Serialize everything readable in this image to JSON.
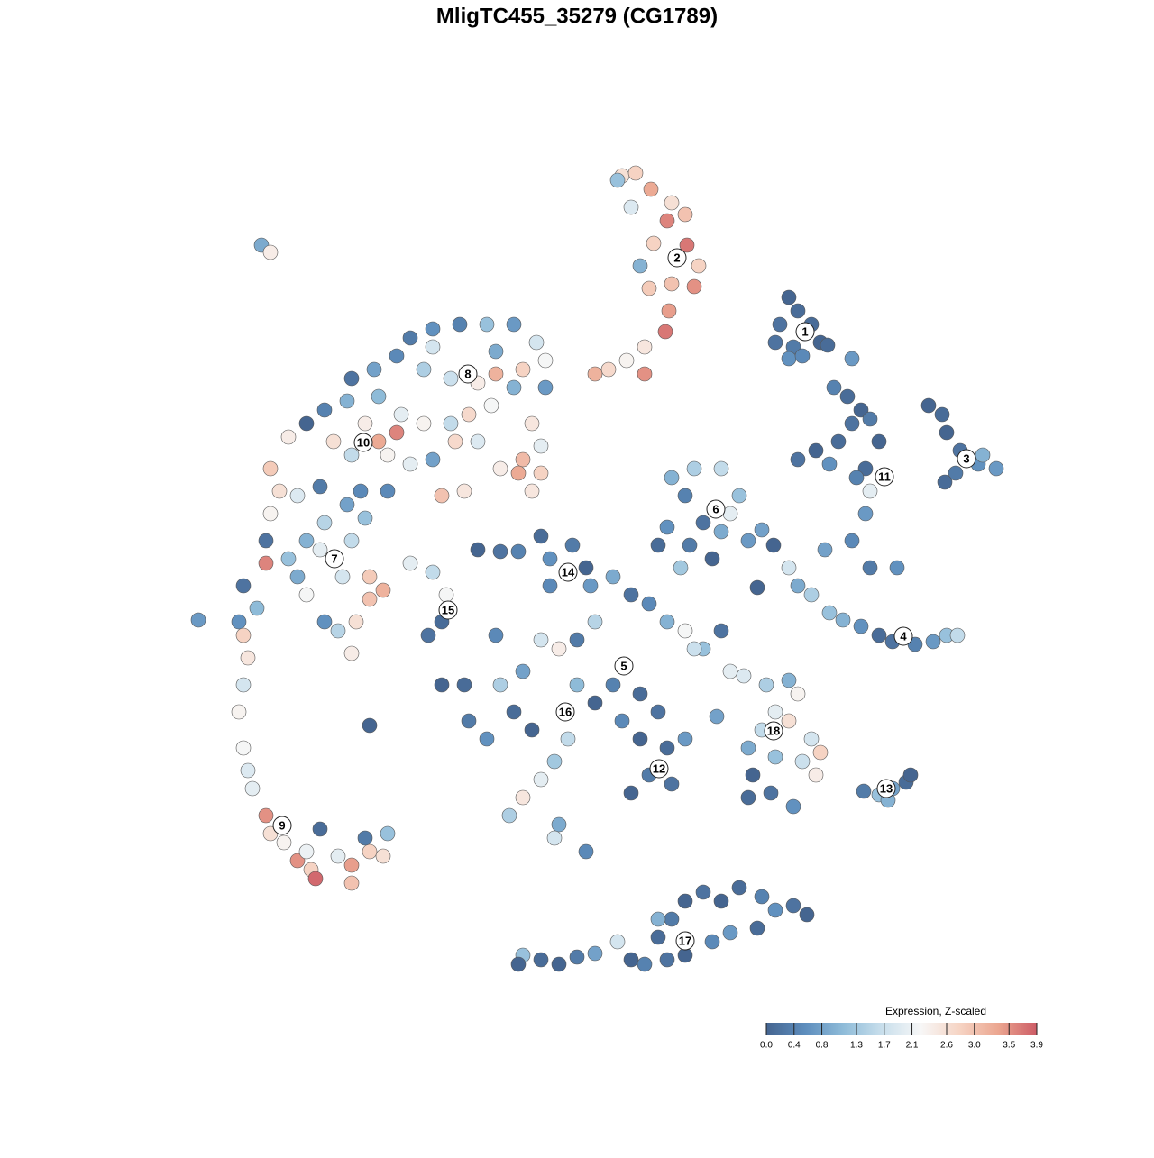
{
  "chart_data": {
    "type": "scatter",
    "title": "MligTC455_35279 (CG1789)",
    "xlim": [
      0,
      1280
    ],
    "ylim": [
      1280,
      0
    ],
    "x": [
      690,
      705,
      722,
      745,
      760,
      740,
      725,
      762,
      775,
      745,
      770,
      720,
      742,
      738,
      715,
      695,
      715,
      675,
      660,
      700,
      710,
      685,
      875,
      885,
      865,
      900,
      880,
      910,
      860,
      875,
      890,
      945,
      918,
      1030,
      1045,
      1050,
      1065,
      1085,
      1105,
      1060,
      1048,
      1090,
      925,
      940,
      955,
      945,
      965,
      930,
      905,
      885,
      920,
      960,
      975,
      950,
      965,
      960,
      945,
      915,
      965,
      995,
      858,
      875,
      885,
      900,
      920,
      935,
      955,
      975,
      990,
      1015,
      1035,
      1050,
      1062,
      840,
      745,
      770,
      800,
      820,
      760,
      780,
      800,
      830,
      740,
      730,
      765,
      790,
      845,
      810,
      755,
      455,
      480,
      510,
      540,
      570,
      595,
      605,
      580,
      550,
      530,
      500,
      470,
      440,
      415,
      390,
      385,
      360,
      340,
      320,
      300,
      310,
      330,
      355,
      420,
      445,
      470,
      500,
      520,
      545,
      570,
      590,
      600,
      580,
      555,
      530,
      505,
      480,
      455,
      430,
      420,
      440,
      405,
      390,
      370,
      600,
      575,
      590,
      605,
      490,
      515,
      480,
      550,
      300,
      295,
      320,
      295,
      340,
      360,
      385,
      400,
      405,
      390,
      355,
      380,
      410,
      425,
      410,
      395,
      375,
      390,
      360,
      340,
      430,
      330,
      270,
      285,
      265,
      270,
      275,
      270,
      265,
      270,
      275,
      280,
      295,
      300,
      315,
      330,
      345,
      350,
      375,
      390,
      390,
      410,
      425,
      430,
      405,
      355,
      340,
      220,
      455,
      480,
      495,
      490,
      475,
      530,
      555,
      575,
      600,
      610,
      635,
      650,
      610,
      655,
      680,
      700,
      720,
      740,
      760,
      780,
      660,
      640,
      620,
      600,
      580,
      555,
      570,
      590,
      540,
      520,
      640,
      660,
      680,
      710,
      730,
      690,
      710,
      740,
      760,
      720,
      700,
      745,
      630,
      615,
      600,
      580,
      565,
      620,
      615,
      650,
      490,
      515,
      550,
      410,
      795,
      810,
      770,
      800,
      825,
      850,
      875,
      885,
      860,
      875,
      845,
      830,
      860,
      835,
      855,
      880,
      900,
      910,
      905,
      890,
      830,
      958,
      975,
      990,
      1005,
      1010,
      985,
      580,
      600,
      620,
      640,
      660,
      685,
      700,
      715,
      730,
      745,
      760,
      780,
      800,
      820,
      845,
      860,
      880,
      895,
      840,
      810,
      790,
      760,
      740,
      575,
      730,
      290,
      300
    ],
    "y": [
      195,
      192,
      210,
      225,
      238,
      245,
      270,
      272,
      295,
      315,
      318,
      320,
      345,
      368,
      385,
      400,
      415,
      410,
      415,
      230,
      295,
      200,
      330,
      345,
      360,
      360,
      385,
      380,
      380,
      398,
      395,
      398,
      383,
      450,
      460,
      480,
      500,
      515,
      520,
      525,
      535,
      505,
      430,
      440,
      455,
      470,
      465,
      490,
      500,
      510,
      515,
      520,
      490,
      530,
      545,
      570,
      600,
      610,
      630,
      630,
      605,
      630,
      650,
      660,
      680,
      688,
      695,
      705,
      712,
      715,
      712,
      705,
      705,
      652,
      530,
      520,
      520,
      550,
      550,
      580,
      590,
      600,
      585,
      605,
      605,
      620,
      588,
      570,
      630,
      375,
      365,
      360,
      360,
      360,
      380,
      400,
      410,
      415,
      425,
      420,
      410,
      395,
      410,
      420,
      445,
      455,
      470,
      485,
      520,
      545,
      550,
      540,
      440,
      460,
      470,
      470,
      460,
      450,
      430,
      470,
      495,
      510,
      520,
      490,
      490,
      510,
      515,
      505,
      490,
      480,
      470,
      505,
      490,
      525,
      525,
      545,
      430,
      550,
      545,
      385,
      390,
      570,
      600,
      620,
      625,
      600,
      580,
      560,
      545,
      575,
      600,
      610,
      640,
      640,
      655,
      665,
      690,
      700,
      725,
      690,
      660,
      545,
      640,
      650,
      675,
      690,
      705,
      730,
      760,
      790,
      830,
      855,
      875,
      905,
      925,
      935,
      955,
      965,
      975,
      950,
      960,
      980,
      945,
      950,
      925,
      930,
      920,
      945,
      688,
      625,
      635,
      660,
      690,
      705,
      610,
      612,
      612,
      595,
      620,
      605,
      630,
      650,
      650,
      640,
      660,
      670,
      690,
      700,
      720,
      690,
      710,
      720,
      710,
      745,
      760,
      790,
      810,
      820,
      800,
      760,
      780,
      760,
      770,
      790,
      800,
      820,
      830,
      820,
      860,
      880,
      870,
      820,
      845,
      865,
      885,
      905,
      915,
      930,
      945,
      760,
      760,
      705,
      805,
      795,
      745,
      720,
      700,
      750,
      760,
      755,
      770,
      790,
      800,
      810,
      830,
      840,
      860,
      880,
      895,
      820,
      835,
      860,
      845,
      885,
      878,
      882,
      875,
      868,
      860,
      888,
      1060,
      1065,
      1070,
      1062,
      1058,
      1045,
      1065,
      1070,
      1040,
      1020,
      1000,
      990,
      1000,
      985,
      995,
      1010,
      1005,
      1015,
      1030,
      1035,
      1045,
      1060,
      1065,
      1070,
      1020,
      272,
      280
    ],
    "values": [
      2.6,
      2.8,
      3.3,
      2.6,
      3.0,
      3.6,
      2.8,
      3.7,
      2.8,
      3.0,
      3.5,
      2.9,
      3.4,
      3.7,
      2.5,
      2.3,
      3.5,
      2.7,
      3.2,
      1.9,
      1.0,
      1.2,
      0.0,
      0.1,
      0.2,
      0.1,
      0.3,
      0.0,
      0.2,
      0.6,
      0.5,
      0.7,
      0.1,
      0.0,
      0.1,
      0.0,
      0.2,
      0.6,
      0.7,
      0.3,
      0.1,
      1.0,
      0.4,
      0.1,
      0.0,
      0.2,
      0.3,
      0.1,
      0.0,
      0.2,
      0.6,
      0.1,
      0.0,
      0.4,
      2.0,
      0.7,
      0.5,
      0.8,
      0.3,
      0.6,
      0.0,
      1.8,
      0.9,
      1.4,
      1.2,
      1.0,
      0.6,
      0.1,
      0.2,
      0.4,
      0.7,
      1.2,
      1.6,
      0.0,
      1.0,
      1.4,
      1.6,
      1.2,
      0.4,
      0.2,
      0.9,
      0.7,
      0.6,
      0.1,
      0.3,
      0.0,
      0.8,
      2.0,
      1.3,
      0.3,
      0.6,
      0.4,
      1.2,
      0.7,
      1.8,
      2.2,
      2.8,
      3.2,
      2.4,
      1.7,
      1.4,
      0.5,
      0.8,
      0.2,
      1.0,
      0.4,
      0.0,
      2.4,
      2.9,
      2.6,
      1.9,
      0.3,
      1.1,
      2.0,
      2.3,
      1.6,
      2.7,
      2.2,
      1.0,
      2.5,
      2.0,
      3.1,
      2.4,
      1.9,
      2.7,
      0.8,
      2.0,
      2.3,
      3.3,
      3.6,
      2.4,
      1.6,
      2.6,
      2.8,
      3.3,
      2.5,
      0.7,
      3.0,
      2.5,
      1.8,
      0.9,
      2.3,
      0.2,
      1.2,
      3.6,
      1.0,
      1.5,
      0.8,
      0.5,
      1.2,
      1.6,
      2.0,
      1.8,
      2.9,
      3.2,
      3.0,
      2.6,
      1.5,
      2.4,
      0.6,
      2.2,
      0.5,
      0.9,
      0.2,
      1.1,
      0.6,
      2.8,
      2.5,
      1.8,
      2.3,
      2.2,
      1.9,
      2.0,
      3.5,
      2.6,
      2.3,
      3.5,
      2.8,
      3.8,
      2.0,
      3.4,
      3.0,
      2.8,
      2.6,
      1.2,
      0.3,
      0.1,
      2.1,
      0.7,
      2.0,
      1.6,
      2.2,
      0.1,
      0.2,
      0.0,
      0.2,
      0.4,
      0.1,
      0.6,
      0.3,
      0.0,
      0.5,
      0.7,
      0.9,
      0.2,
      0.5,
      1.0,
      2.2,
      1.2,
      1.5,
      0.3,
      2.4,
      1.8,
      0.8,
      1.4,
      0.1,
      0.0,
      0.6,
      0.3,
      1.1,
      0.0,
      0.4,
      0.1,
      0.2,
      0.5,
      0.0,
      0.1,
      0.7,
      0.3,
      0.0,
      0.2,
      1.6,
      1.3,
      2.0,
      2.5,
      1.4,
      0.9,
      1.8,
      0.5,
      0.0,
      0.1,
      0.5,
      0.0,
      0.8,
      2.0,
      1.7,
      0.2,
      1.9,
      1.4,
      1.0,
      2.3,
      2.0,
      2.6,
      1.6,
      0.9,
      1.2,
      0.0,
      0.2,
      0.6,
      1.8,
      2.8,
      2.4,
      1.7,
      0.1,
      0.3,
      1.2,
      0.8,
      0.1,
      0.0,
      1.0,
      1.2,
      0.1,
      0.0,
      0.3,
      0.8,
      1.8,
      0.0,
      0.4,
      0.1,
      0.3,
      0.0,
      0.2,
      0.0,
      0.1,
      0.4,
      0.6,
      0.2,
      0.0,
      0.1,
      0.7,
      0.5,
      0.0,
      0.2,
      0.0,
      1.0,
      0.9,
      2.4
    ],
    "clusters": [
      {
        "label": "1",
        "x": 893,
        "y": 368
      },
      {
        "label": "2",
        "x": 751,
        "y": 286
      },
      {
        "label": "3",
        "x": 1072,
        "y": 509
      },
      {
        "label": "4",
        "x": 1002,
        "y": 706
      },
      {
        "label": "5",
        "x": 692,
        "y": 739
      },
      {
        "label": "6",
        "x": 794,
        "y": 565
      },
      {
        "label": "7",
        "x": 371,
        "y": 620
      },
      {
        "label": "8",
        "x": 519,
        "y": 415
      },
      {
        "label": "9",
        "x": 313,
        "y": 916
      },
      {
        "label": "10",
        "x": 403,
        "y": 491
      },
      {
        "label": "11",
        "x": 981,
        "y": 529
      },
      {
        "label": "12",
        "x": 731,
        "y": 853
      },
      {
        "label": "13",
        "x": 983,
        "y": 875
      },
      {
        "label": "14",
        "x": 630,
        "y": 635
      },
      {
        "label": "15",
        "x": 497,
        "y": 677
      },
      {
        "label": "16",
        "x": 627,
        "y": 790
      },
      {
        "label": "17",
        "x": 760,
        "y": 1044
      },
      {
        "label": "18",
        "x": 858,
        "y": 811
      }
    ],
    "colorbar_title": "Expression, Z-scaled",
    "clim": [
      0,
      3.9
    ],
    "cticks": [
      {
        "value": 0,
        "label": "0.0"
      },
      0.4,
      0.8,
      1.3,
      1.7,
      2.1,
      2.6,
      {
        "value": 3,
        "label": "3.0"
      },
      3.5,
      3.9
    ],
    "colors": [
      "#456590",
      "#5d8dbd",
      "#8fbcd9",
      "#c9dfec",
      "#f7f7f7",
      "#f6d4c4",
      "#eba690",
      "#cd5c66"
    ]
  }
}
